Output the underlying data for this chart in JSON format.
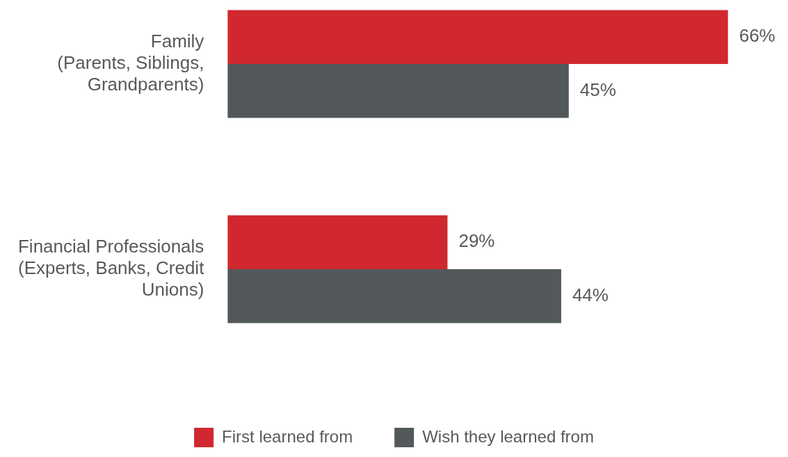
{
  "chart_data": {
    "type": "bar",
    "orientation": "horizontal",
    "categories": [
      "Family\n(Parents, Siblings,\nGrandparents)",
      "Financial Professionals\n(Experts, Banks, Credit\nUnions)"
    ],
    "series": [
      {
        "name": "First learned from",
        "color": "#d0282e",
        "values": [
          66,
          29
        ],
        "value_labels": [
          "66%",
          "29%"
        ]
      },
      {
        "name": "Wish they learned from",
        "color": "#53585b",
        "values": [
          45,
          44
        ],
        "value_labels": [
          "45%",
          "44%"
        ]
      }
    ],
    "legend": "bottom"
  }
}
